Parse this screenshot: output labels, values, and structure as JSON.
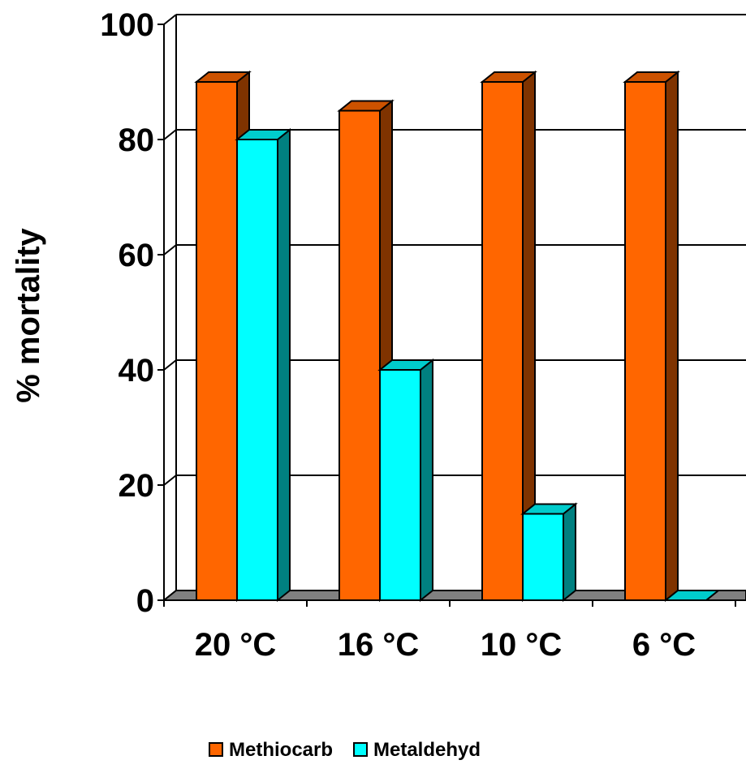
{
  "chart_data": {
    "type": "bar",
    "title": "",
    "xlabel": "",
    "ylabel": "% mortality",
    "ylim": [
      0,
      100
    ],
    "yticks": [
      0,
      20,
      40,
      60,
      80,
      100
    ],
    "categories": [
      "20 °C",
      "16 °C",
      "10 °C",
      "6 °C"
    ],
    "series": [
      {
        "name": "Methiocarb",
        "values": [
          90,
          85,
          90,
          90
        ],
        "color": "#ff6600",
        "side_color": "#7f3300",
        "top_color": "#cc5200"
      },
      {
        "name": "Metaldehyd",
        "values": [
          80,
          40,
          15,
          0
        ],
        "color": "#00ffff",
        "side_color": "#008080",
        "top_color": "#00cccc"
      }
    ],
    "grid": true,
    "legend_position": "bottom",
    "style": "3d-column"
  }
}
